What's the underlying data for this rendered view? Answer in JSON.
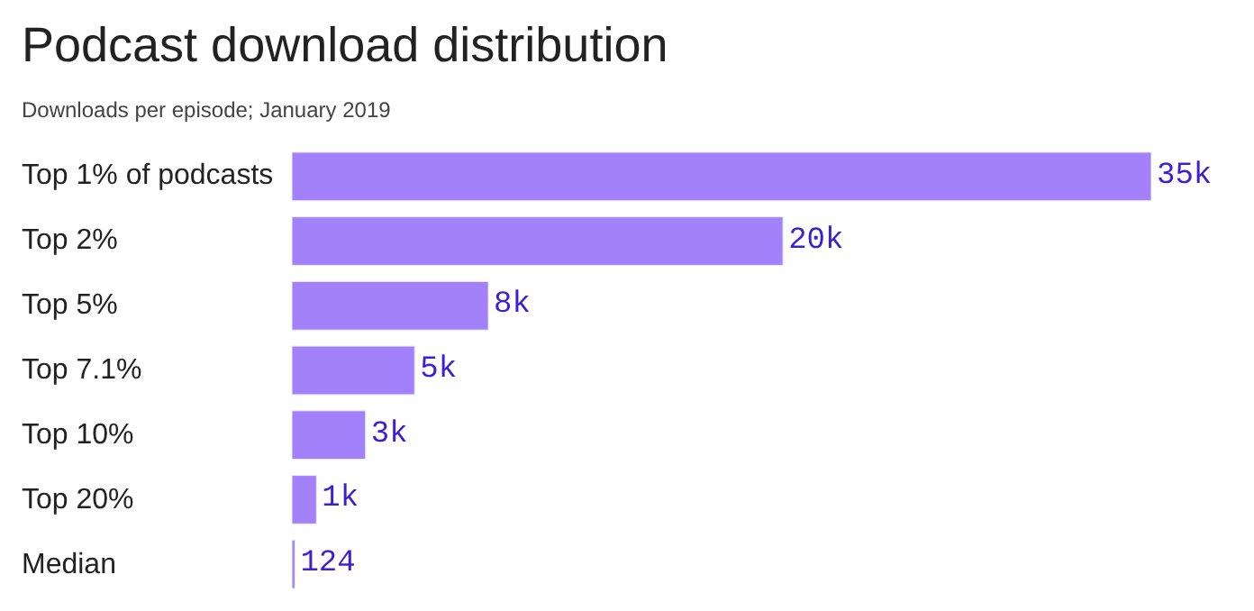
{
  "chart_data": {
    "type": "bar",
    "orientation": "horizontal",
    "title": "Podcast download distribution",
    "subtitle": "Downloads per episode; January 2019",
    "categories": [
      "Top 1% of podcasts",
      "Top 2%",
      "Top 5%",
      "Top 7.1%",
      "Top 10%",
      "Top 20%",
      "Median"
    ],
    "values": [
      35000,
      20000,
      8000,
      5000,
      3000,
      1000,
      124
    ],
    "value_labels": [
      "35k",
      "20k",
      "8k",
      "5k",
      "3k",
      "1k",
      "124"
    ],
    "color": "#a381fb"
  }
}
